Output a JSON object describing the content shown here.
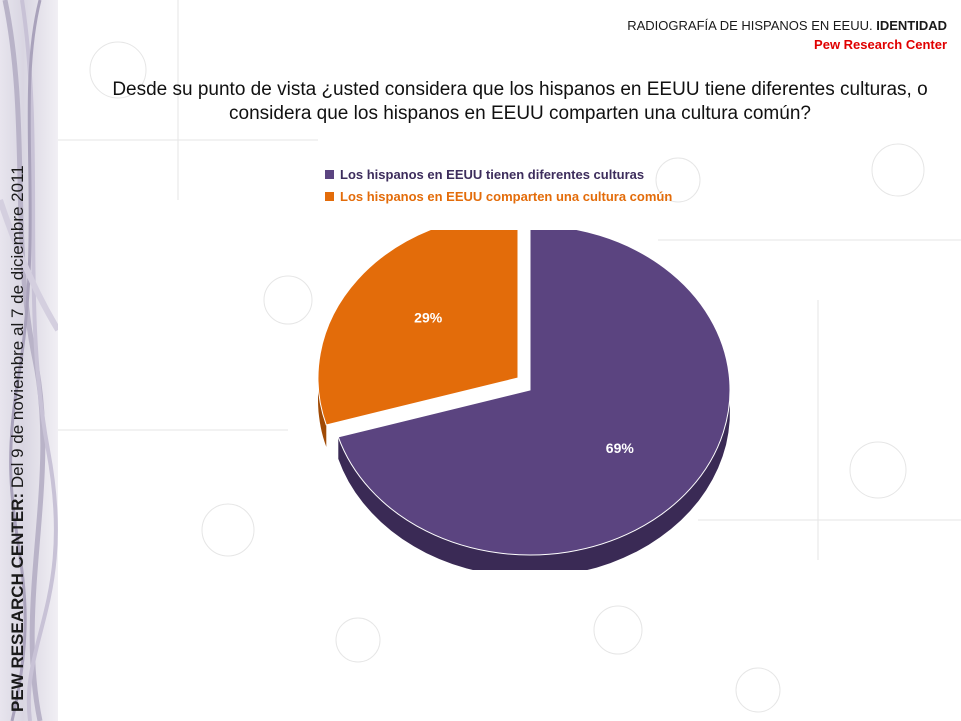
{
  "header": {
    "title_prefix": "RADIOGRAFÍA DE HISPANOS EN EEUU. ",
    "title_bold": "IDENTIDAD",
    "source": "Pew Research Center"
  },
  "side_note": {
    "bold": "PEW RESEARCH CENTER:",
    "text": " Del 9 de noviembre al 7 de diciembre 2011"
  },
  "colors": {
    "series1": "#5b4480",
    "series1_dark": "#3a2a55",
    "series2": "#e36c0a",
    "series2_dark": "#a04a05",
    "source_red": "#e00000"
  },
  "chart_data": {
    "type": "pie",
    "title": "Desde su punto de vista ¿usted considera que los hispanos en EEUU tiene diferentes culturas, o considera que los hispanos en EEUU comparten una cultura común?",
    "legend_position": "top",
    "slices": [
      {
        "label": "Los hispanos en EEUU tienen diferentes culturas",
        "value": 69,
        "display": "69%",
        "color": "#5b4480",
        "side": "#3a2a55"
      },
      {
        "label": "Los hispanos en EEUU comparten una cultura común",
        "value": 29,
        "display": "29%",
        "color": "#e36c0a",
        "side": "#a04a05"
      }
    ]
  }
}
